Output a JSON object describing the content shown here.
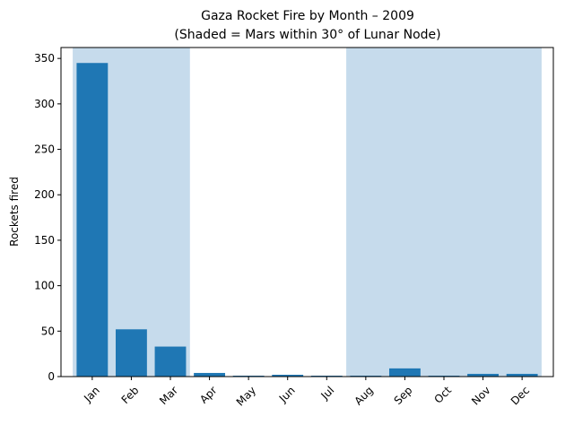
{
  "chart_data": {
    "type": "bar",
    "title": "Gaza Rocket Fire by Month – 2009",
    "subtitle": "(Shaded = Mars within 30° of Lunar Node)",
    "xlabel": "",
    "ylabel": "Rockets fired",
    "categories": [
      "Jan",
      "Feb",
      "Mar",
      "Apr",
      "May",
      "Jun",
      "Jul",
      "Aug",
      "Sep",
      "Oct",
      "Nov",
      "Dec"
    ],
    "values": [
      345,
      52,
      33,
      4,
      1,
      2,
      1,
      1,
      9,
      1,
      3,
      3
    ],
    "ylim": [
      0,
      362
    ],
    "yticks": [
      0,
      50,
      100,
      150,
      200,
      250,
      300,
      350
    ],
    "shaded_months": [
      "Jan",
      "Feb",
      "Mar",
      "Aug",
      "Sep",
      "Oct",
      "Nov",
      "Dec"
    ],
    "grid": false,
    "colors": {
      "bar": "#1f77b4",
      "shade": "#c6dbec",
      "axis": "#000000"
    }
  }
}
